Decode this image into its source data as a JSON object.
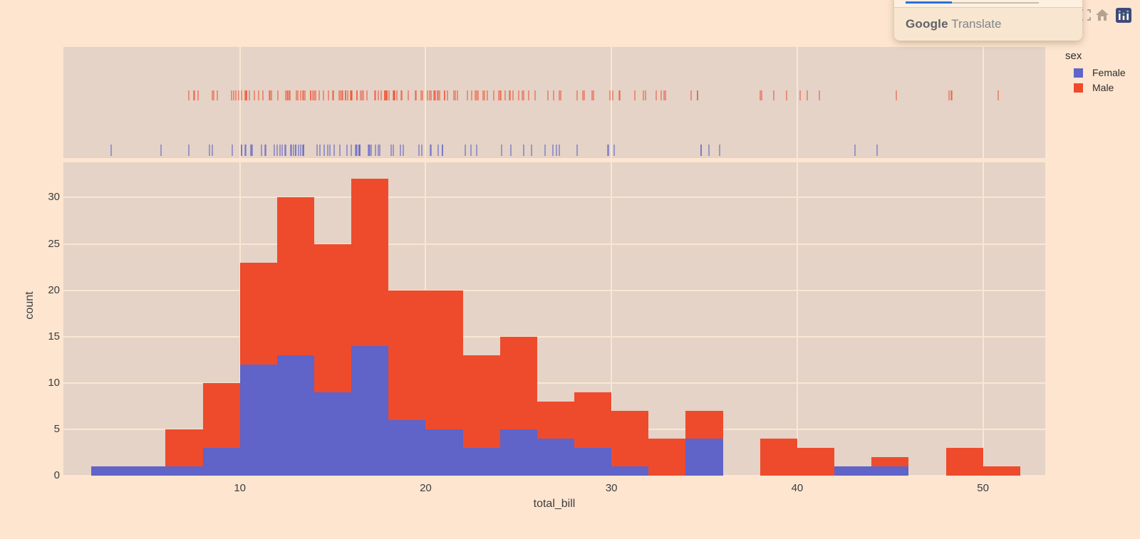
{
  "colors": {
    "page_bg": "#fde5d0",
    "panel_bg": "#e4d3c6",
    "grid": "#f9e7d3",
    "axis_text": "#3d3d3d",
    "legend_text": "#2e2e2e",
    "female": "#6063c8",
    "male": "#ee4b2d",
    "popup_bg": "#f8e6d1",
    "popup_top_bg": "#fdf0e1",
    "popup_divider": "#decdbc",
    "progress_blue": "#2f6fd8",
    "progress_track": "#c9beb2",
    "google_text": "#5f6368",
    "translate_text": "#80868b",
    "modebar_gray": "#b3a292",
    "plotly_logo_bg": "#3e4a79",
    "plotly_logo_dot": "#6fc8b7"
  },
  "legend": {
    "title": "sex",
    "items": [
      {
        "label": "Female",
        "color": "#6063c8"
      },
      {
        "label": "Male",
        "color": "#ee4b2d"
      }
    ]
  },
  "translate_popup": {
    "brand": "Google",
    "product": "Translate",
    "progress_percent": 35
  },
  "modebar": {
    "icons": [
      "autoscale-icon",
      "home-icon",
      "plotly-logo-icon"
    ]
  },
  "chart_data": {
    "type": "histogram",
    "stacked": true,
    "marginal": "rug",
    "xlabel": "total_bill",
    "ylabel": "count",
    "legend_title": "sex",
    "bin_start": 2,
    "bin_size": 2,
    "bin_count": 25,
    "x_ticks": [
      10,
      20,
      30,
      40,
      50
    ],
    "y_ticks": [
      0,
      5,
      10,
      15,
      20,
      25,
      30
    ],
    "x_range": [
      0.5,
      53.35
    ],
    "y_range": [
      0,
      33.8
    ],
    "grid": true,
    "legend_position": "right",
    "series": [
      {
        "name": "Female",
        "color": "#6063c8",
        "counts": [
          1,
          1,
          1,
          3,
          12,
          13,
          9,
          14,
          6,
          5,
          3,
          5,
          4,
          3,
          1,
          0,
          4,
          0,
          0,
          0,
          1,
          1,
          0,
          0,
          0
        ]
      },
      {
        "name": "Male",
        "color": "#ee4b2d",
        "counts": [
          0,
          0,
          4,
          7,
          11,
          17,
          16,
          18,
          14,
          15,
          10,
          10,
          4,
          6,
          6,
          4,
          3,
          0,
          4,
          3,
          0,
          1,
          0,
          3,
          1
        ]
      }
    ],
    "rug": {
      "Female": [
        16.99,
        24.59,
        35.26,
        14.83,
        10.33,
        16.97,
        20.29,
        15.77,
        19.65,
        15.06,
        20.69,
        16.93,
        10.29,
        34.81,
        26.41,
        16.45,
        3.07,
        12.02,
        17.07,
        26.86,
        25.28,
        14.73,
        10.07,
        34.83,
        5.75,
        16.32,
        22.75,
        11.35,
        15.38,
        44.3,
        22.42,
        20.92,
        14.31,
        7.25,
        25.71,
        17.31,
        10.65,
        12.43,
        24.08,
        13.42,
        12.48,
        29.8,
        14.52,
        11.38,
        20.27,
        11.17,
        12.26,
        18.26,
        8.51,
        14.15,
        13.16,
        17.47,
        27.05,
        16.43,
        8.35,
        18.64,
        11.87,
        29.85,
        13.39,
        16.21,
        17.51,
        10.59,
        10.63,
        9.6,
        20.9,
        18.15,
        19.81,
        43.11,
        13.0,
        12.74,
        13.0,
        16.4,
        16.47,
        12.76,
        13.27,
        28.17,
        12.9,
        30.14,
        12.16,
        13.42,
        15.98,
        16.27,
        10.09,
        22.12,
        35.83,
        27.18,
        18.78
      ],
      "Male": [
        10.34,
        21.01,
        23.68,
        25.29,
        8.77,
        26.88,
        15.04,
        14.78,
        10.27,
        15.42,
        18.43,
        21.58,
        16.29,
        20.65,
        17.92,
        39.42,
        19.82,
        17.81,
        13.37,
        12.69,
        21.7,
        9.55,
        18.35,
        17.78,
        24.06,
        16.31,
        18.69,
        31.27,
        16.04,
        17.46,
        13.94,
        9.68,
        30.4,
        18.29,
        22.23,
        32.4,
        28.55,
        18.04,
        12.54,
        9.94,
        25.56,
        19.49,
        38.01,
        11.24,
        48.27,
        20.29,
        13.81,
        11.02,
        18.29,
        17.59,
        20.08,
        20.23,
        15.01,
        10.51,
        17.92,
        27.2,
        22.76,
        17.29,
        19.44,
        16.66,
        32.68,
        15.98,
        13.03,
        18.28,
        24.71,
        21.16,
        28.97,
        22.49,
        40.17,
        27.28,
        12.03,
        21.01,
        12.46,
        15.36,
        20.49,
        25.21,
        18.24,
        14.0,
        38.07,
        23.95,
        29.93,
        11.69,
        14.26,
        15.95,
        8.52,
        22.82,
        19.08,
        10.33,
        16.0,
        34.3,
        41.19,
        9.78,
        7.51,
        14.07,
        13.13,
        17.26,
        24.55,
        19.77,
        48.17,
        25.0,
        16.49,
        21.5,
        12.66,
        13.81,
        24.52,
        20.76,
        31.71,
        50.81,
        15.81,
        7.25,
        31.85,
        16.82,
        32.9,
        17.89,
        14.48,
        34.63,
        34.65,
        23.33,
        45.35,
        23.17,
        40.55,
        20.69,
        30.46,
        23.1,
        15.69,
        28.44,
        15.48,
        16.58,
        7.56,
        10.34,
        13.51,
        18.71,
        20.53,
        26.59,
        38.73,
        24.27,
        30.06,
        25.89,
        48.33,
        28.15,
        11.59,
        7.74,
        8.58,
        13.42,
        20.45,
        13.28,
        24.01,
        15.69,
        11.61,
        10.77,
        15.53,
        10.07,
        12.6,
        32.83,
        29.03,
        22.67,
        17.82
      ]
    }
  }
}
